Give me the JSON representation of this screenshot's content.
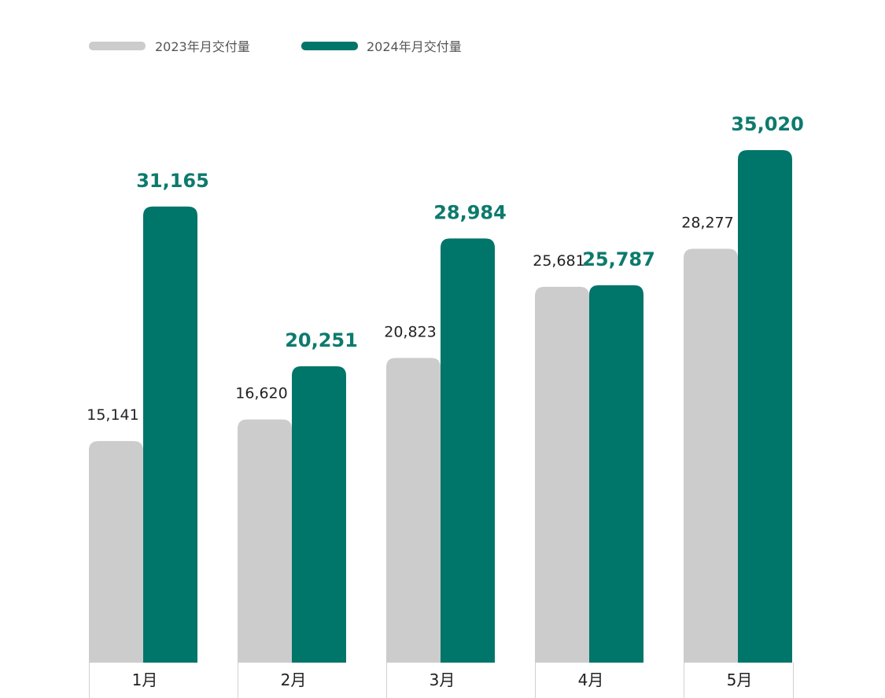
{
  "chart_data": {
    "type": "bar",
    "categories": [
      "1月",
      "2月",
      "3月",
      "4月",
      "5月"
    ],
    "series": [
      {
        "name": "2023年月交付量",
        "values": [
          15141,
          16620,
          20823,
          25681,
          28277
        ],
        "labels": [
          "15,141",
          "16,620",
          "20,823",
          "25,681",
          "28,277"
        ],
        "color": "#cccccc"
      },
      {
        "name": "2024年月交付量",
        "values": [
          31165,
          20251,
          28984,
          25787,
          35020
        ],
        "labels": [
          "31,165",
          "20,251",
          "28,984",
          "25,787",
          "35,020"
        ],
        "color": "#00756a"
      }
    ],
    "legend_position": "top-left",
    "grid": false,
    "ylim": [
      0,
      36000
    ]
  }
}
